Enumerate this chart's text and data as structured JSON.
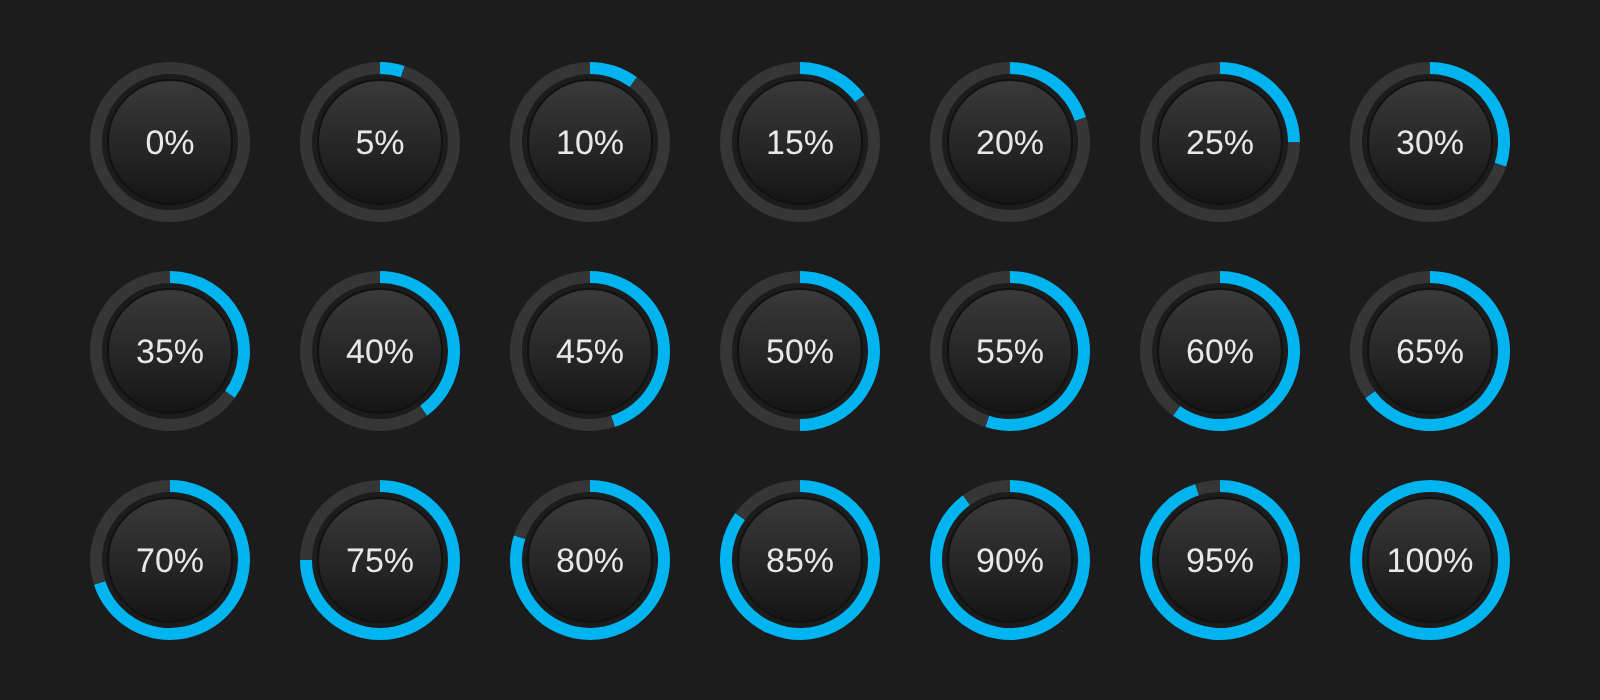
{
  "chart_data": [
    {
      "type": "donut",
      "categories": [
        null,
        null
      ],
      "values": [
        0,
        100
      ],
      "colors": [
        "#00b4ef",
        "#363636"
      ],
      "annotations": [
        "0%"
      ]
    },
    {
      "type": "donut",
      "categories": [
        null,
        null
      ],
      "values": [
        5,
        95
      ],
      "colors": [
        "#00b4ef",
        "#363636"
      ],
      "annotations": [
        "5%"
      ]
    },
    {
      "type": "donut",
      "categories": [
        null,
        null
      ],
      "values": [
        10,
        90
      ],
      "colors": [
        "#00b4ef",
        "#363636"
      ],
      "annotations": [
        "10%"
      ]
    },
    {
      "type": "donut",
      "categories": [
        null,
        null
      ],
      "values": [
        15,
        85
      ],
      "colors": [
        "#00b4ef",
        "#363636"
      ],
      "annotations": [
        "15%"
      ]
    },
    {
      "type": "donut",
      "categories": [
        null,
        null
      ],
      "values": [
        20,
        80
      ],
      "colors": [
        "#00b4ef",
        "#363636"
      ],
      "annotations": [
        "20%"
      ]
    },
    {
      "type": "donut",
      "categories": [
        null,
        null
      ],
      "values": [
        25,
        75
      ],
      "colors": [
        "#00b4ef",
        "#363636"
      ],
      "annotations": [
        "25%"
      ]
    },
    {
      "type": "donut",
      "categories": [
        null,
        null
      ],
      "values": [
        30,
        70
      ],
      "colors": [
        "#00b4ef",
        "#363636"
      ],
      "annotations": [
        "30%"
      ]
    },
    {
      "type": "donut",
      "categories": [
        null,
        null
      ],
      "values": [
        35,
        65
      ],
      "colors": [
        "#00b4ef",
        "#363636"
      ],
      "annotations": [
        "35%"
      ]
    },
    {
      "type": "donut",
      "categories": [
        null,
        null
      ],
      "values": [
        40,
        60
      ],
      "colors": [
        "#00b4ef",
        "#363636"
      ],
      "annotations": [
        "40%"
      ]
    },
    {
      "type": "donut",
      "categories": [
        null,
        null
      ],
      "values": [
        45,
        55
      ],
      "colors": [
        "#00b4ef",
        "#363636"
      ],
      "annotations": [
        "45%"
      ]
    },
    {
      "type": "donut",
      "categories": [
        null,
        null
      ],
      "values": [
        50,
        50
      ],
      "colors": [
        "#00b4ef",
        "#363636"
      ],
      "annotations": [
        "50%"
      ]
    },
    {
      "type": "donut",
      "categories": [
        null,
        null
      ],
      "values": [
        55,
        45
      ],
      "colors": [
        "#00b4ef",
        "#363636"
      ],
      "annotations": [
        "55%"
      ]
    },
    {
      "type": "donut",
      "categories": [
        null,
        null
      ],
      "values": [
        60,
        40
      ],
      "colors": [
        "#00b4ef",
        "#363636"
      ],
      "annotations": [
        "60%"
      ]
    },
    {
      "type": "donut",
      "categories": [
        null,
        null
      ],
      "values": [
        65,
        35
      ],
      "colors": [
        "#00b4ef",
        "#363636"
      ],
      "annotations": [
        "65%"
      ]
    },
    {
      "type": "donut",
      "categories": [
        null,
        null
      ],
      "values": [
        70,
        30
      ],
      "colors": [
        "#00b4ef",
        "#363636"
      ],
      "annotations": [
        "70%"
      ]
    },
    {
      "type": "donut",
      "categories": [
        null,
        null
      ],
      "values": [
        75,
        25
      ],
      "colors": [
        "#00b4ef",
        "#363636"
      ],
      "annotations": [
        "75%"
      ]
    },
    {
      "type": "donut",
      "categories": [
        null,
        null
      ],
      "values": [
        80,
        20
      ],
      "colors": [
        "#00b4ef",
        "#363636"
      ],
      "annotations": [
        "80%"
      ]
    },
    {
      "type": "donut",
      "categories": [
        null,
        null
      ],
      "values": [
        85,
        15
      ],
      "colors": [
        "#00b4ef",
        "#363636"
      ],
      "annotations": [
        "85%"
      ]
    },
    {
      "type": "donut",
      "categories": [
        null,
        null
      ],
      "values": [
        90,
        10
      ],
      "colors": [
        "#00b4ef",
        "#363636"
      ],
      "annotations": [
        "90%"
      ]
    },
    {
      "type": "donut",
      "categories": [
        null,
        null
      ],
      "values": [
        95,
        5
      ],
      "colors": [
        "#00b4ef",
        "#363636"
      ],
      "annotations": [
        "95%"
      ]
    },
    {
      "type": "donut",
      "categories": [
        null,
        null
      ],
      "values": [
        100,
        0
      ],
      "colors": [
        "#00b4ef",
        "#363636"
      ],
      "annotations": [
        "100%"
      ]
    }
  ]
}
